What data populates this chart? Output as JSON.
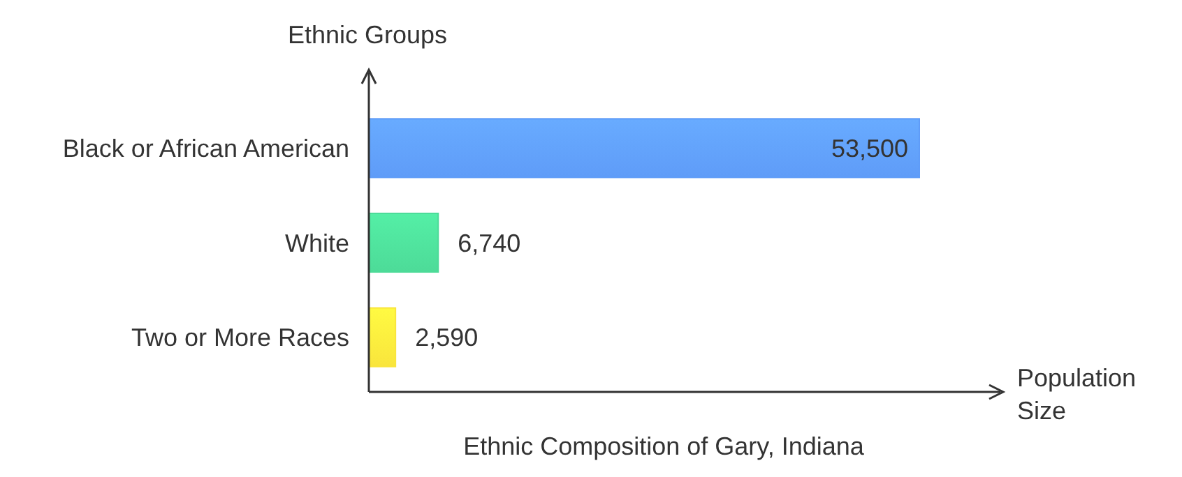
{
  "chart_data": {
    "type": "bar",
    "orientation": "horizontal",
    "title": "Ethnic Composition of Gary, Indiana",
    "xlabel": "Population Size",
    "ylabel": "Ethnic Groups",
    "categories": [
      "Black or African American",
      "White",
      "Two or More Races"
    ],
    "values": [
      53500,
      6740,
      2590
    ],
    "colors": [
      "#5f9cf8",
      "#4ddb98",
      "#f9e53c"
    ],
    "value_labels": [
      "53,500",
      "6,740",
      "2,590"
    ],
    "legend": false,
    "grid": false
  }
}
